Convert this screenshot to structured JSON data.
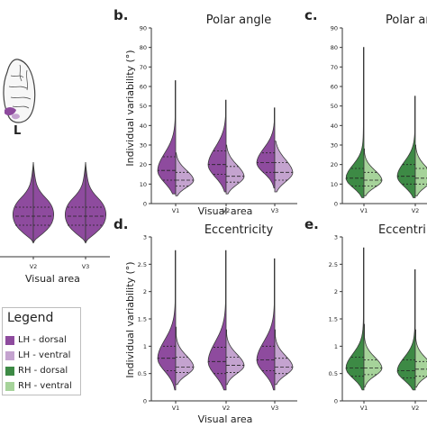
{
  "colors": {
    "lh_dorsal": "#8e4b9e",
    "lh_ventral": "#c4a3cf",
    "rh_dorsal": "#3d8a45",
    "rh_ventral": "#a6d39a"
  },
  "panels": {
    "a": {
      "hemisphere_label": "L",
      "xlabel": "Visual area"
    },
    "b": {
      "letter": "b.",
      "title": "Polar angle",
      "ylabel": "Individual variability (°)",
      "xlabel": "Visual area"
    },
    "c": {
      "letter": "c.",
      "title": "Polar an"
    },
    "d": {
      "letter": "d.",
      "title": "Eccentricity",
      "ylabel": "Individual variability (°)",
      "xlabel": "Visual area"
    },
    "e": {
      "letter": "e.",
      "title": "Eccentri"
    }
  },
  "legend": {
    "title": "Legend",
    "items": [
      {
        "label": "LH - dorsal"
      },
      {
        "label": "LH - ventral"
      },
      {
        "label": "RH - dorsal"
      },
      {
        "label": "RH - ventral"
      }
    ]
  },
  "chart_data": [
    {
      "id": "a",
      "type": "violin",
      "hemisphere": "LH",
      "categories": [
        "V2",
        "V3"
      ],
      "xlabel": "Visual area"
    },
    {
      "id": "b",
      "type": "violin",
      "hemisphere": "LH",
      "title": "Polar angle",
      "ylabel": "Individual variability (°)",
      "xlabel": "Visual area",
      "ylim": [
        0,
        90
      ],
      "yticks": [
        0,
        10,
        20,
        30,
        40,
        50,
        60,
        70,
        80,
        90
      ],
      "categories": [
        "V1",
        "V2",
        "V3"
      ],
      "series": [
        {
          "name": "LH - dorsal",
          "min": [
            5,
            6,
            8
          ],
          "max": [
            63,
            53,
            49
          ],
          "median": [
            17,
            20,
            21
          ],
          "q1": [
            12,
            15,
            16
          ],
          "q3": [
            24,
            27,
            26
          ]
        },
        {
          "name": "LH - ventral",
          "min": [
            4,
            5,
            6
          ],
          "max": [
            26,
            30,
            32
          ],
          "median": [
            12,
            14,
            16
          ],
          "q1": [
            9,
            11,
            12
          ],
          "q3": [
            16,
            19,
            21
          ]
        }
      ]
    },
    {
      "id": "c",
      "type": "violin",
      "hemisphere": "RH",
      "title": "Polar an",
      "ylim": [
        0,
        90
      ],
      "yticks": [
        0,
        10,
        20,
        30,
        40,
        50,
        60,
        70,
        80,
        90
      ],
      "categories": [
        "V1",
        "V2"
      ],
      "series": [
        {
          "name": "RH - dorsal",
          "min": [
            3,
            3
          ],
          "max": [
            80,
            55
          ],
          "median": [
            13,
            14
          ],
          "q1": [
            9,
            10
          ],
          "q3": [
            18,
            20
          ]
        },
        {
          "name": "RH - ventral",
          "min": [
            4,
            4
          ],
          "max": [
            28,
            30
          ],
          "median": [
            12,
            13
          ],
          "q1": [
            9,
            10
          ],
          "q3": [
            16,
            18
          ]
        }
      ]
    },
    {
      "id": "d",
      "type": "violin",
      "hemisphere": "LH",
      "title": "Eccentricity",
      "ylabel": "Individual variability (°)",
      "xlabel": "Visual area",
      "ylim": [
        0,
        3.0
      ],
      "yticks": [
        0,
        0.5,
        1.0,
        1.5,
        2.0,
        2.5,
        3.0
      ],
      "categories": [
        "V1",
        "V2",
        "V3"
      ],
      "series": [
        {
          "name": "LH - dorsal",
          "min": [
            0.2,
            0.2,
            0.2
          ],
          "max": [
            2.75,
            2.75,
            2.6
          ],
          "median": [
            0.78,
            0.72,
            0.75
          ],
          "q1": [
            0.55,
            0.5,
            0.55
          ],
          "q3": [
            1.0,
            0.98,
            1.0
          ]
        },
        {
          "name": "LH - ventral",
          "min": [
            0.3,
            0.3,
            0.3
          ],
          "max": [
            1.35,
            1.3,
            1.3
          ],
          "median": [
            0.62,
            0.65,
            0.62
          ],
          "q1": [
            0.52,
            0.52,
            0.5
          ],
          "q3": [
            0.8,
            0.8,
            0.78
          ]
        }
      ]
    },
    {
      "id": "e",
      "type": "violin",
      "hemisphere": "RH",
      "title": "Eccentri",
      "ylim": [
        0,
        3.0
      ],
      "yticks": [
        0,
        0.5,
        1.0,
        1.5,
        2.0,
        2.5,
        3.0
      ],
      "categories": [
        "V1",
        "V2"
      ],
      "series": [
        {
          "name": "RH - dorsal",
          "min": [
            0.2,
            0.2
          ],
          "max": [
            2.8,
            2.4
          ],
          "median": [
            0.6,
            0.55
          ],
          "q1": [
            0.45,
            0.42
          ],
          "q3": [
            0.8,
            0.75
          ]
        },
        {
          "name": "RH - ventral",
          "min": [
            0.25,
            0.25
          ],
          "max": [
            1.4,
            1.3
          ],
          "median": [
            0.6,
            0.58
          ],
          "q1": [
            0.48,
            0.45
          ],
          "q3": [
            0.75,
            0.72
          ]
        }
      ]
    }
  ]
}
